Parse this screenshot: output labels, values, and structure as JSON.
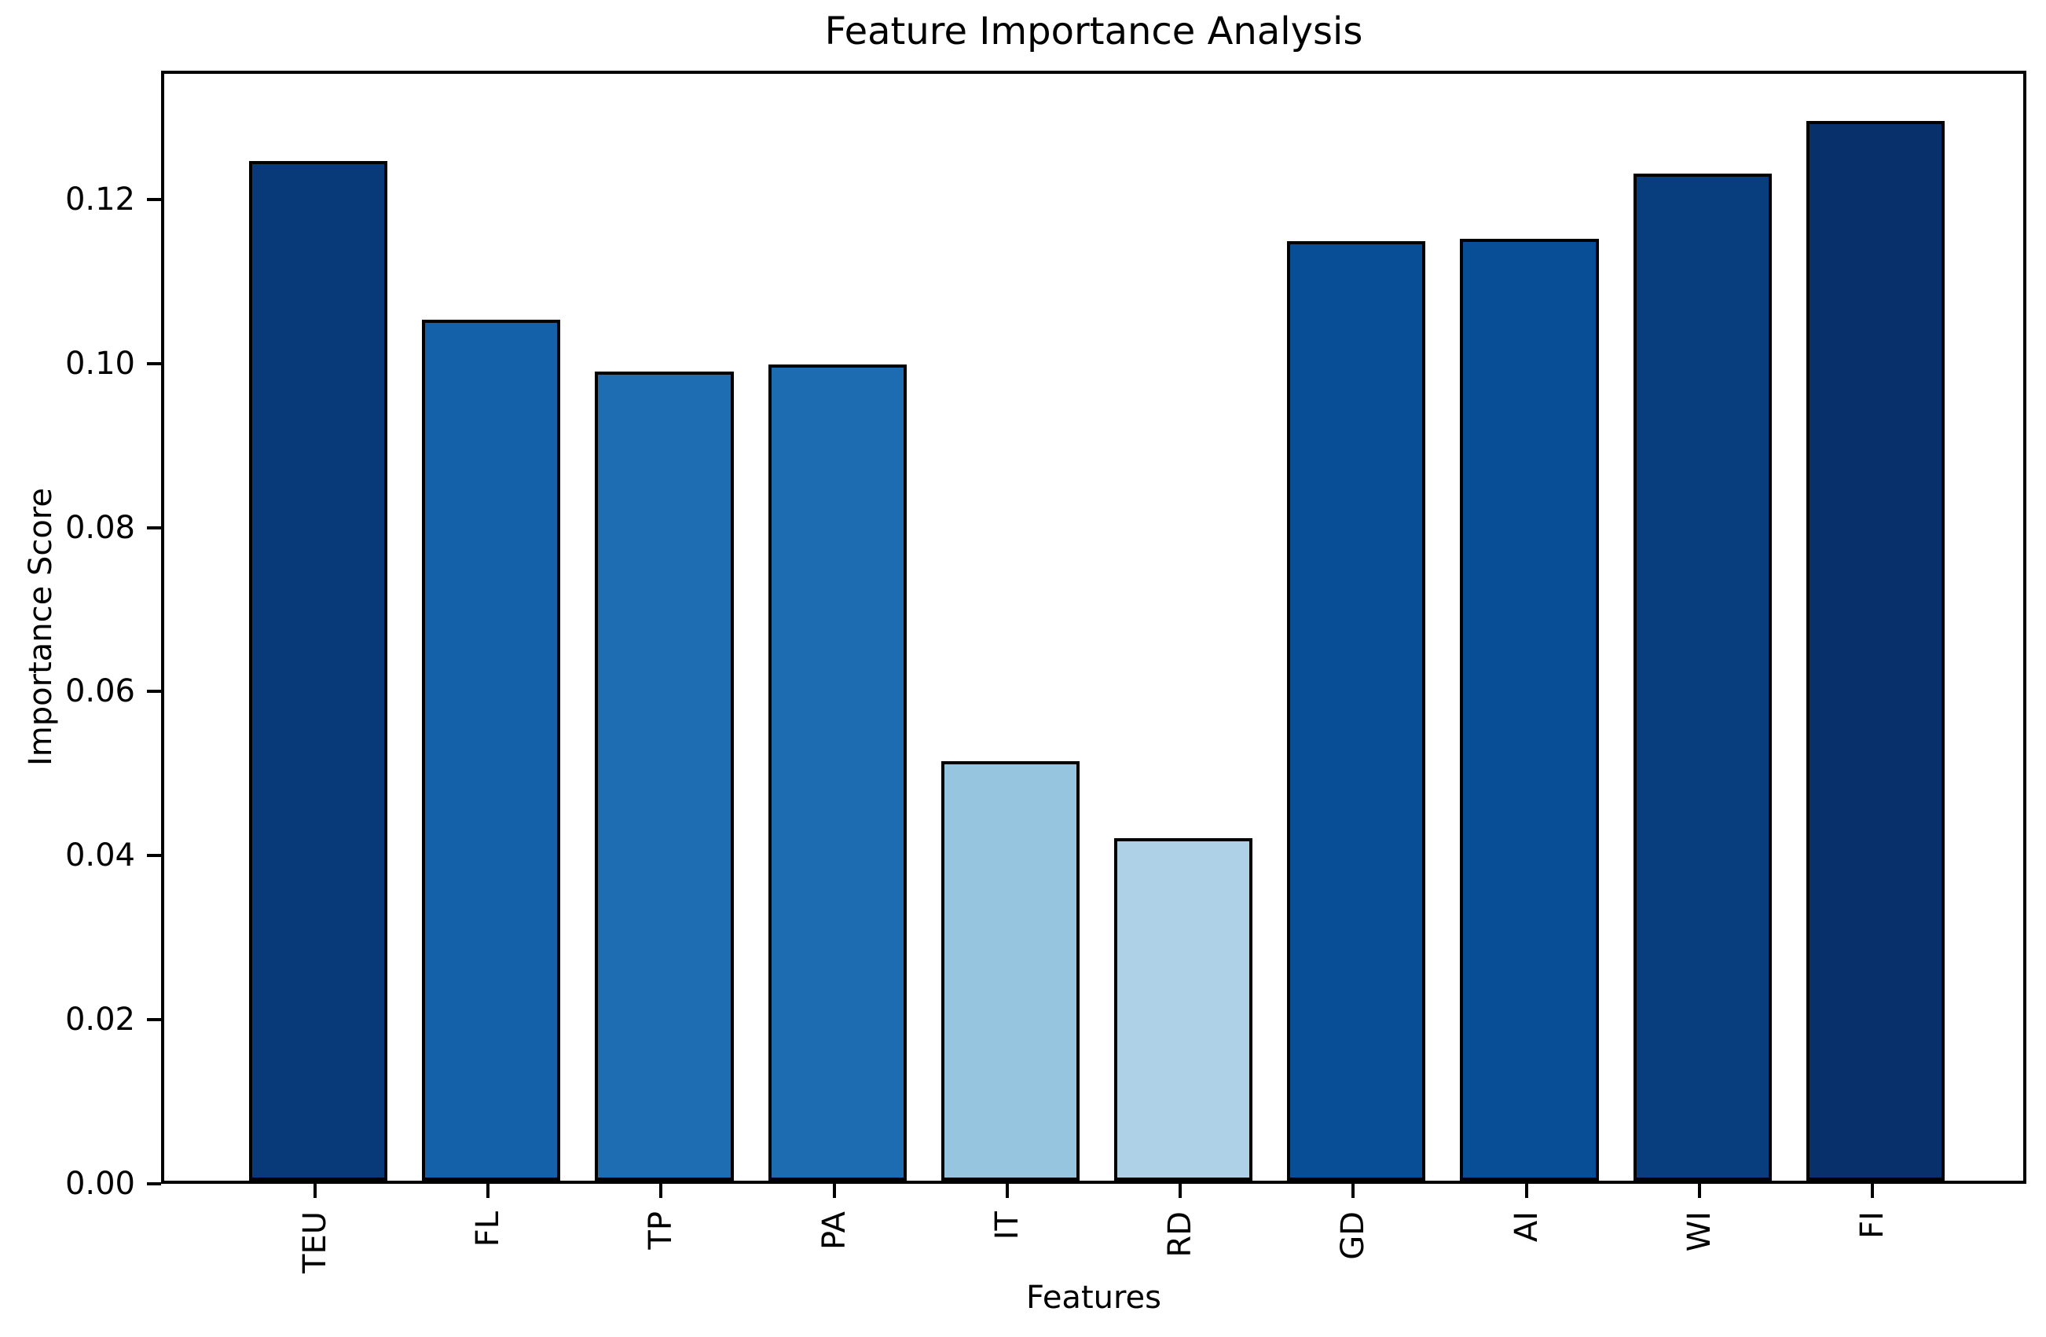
{
  "figure": {
    "background_color": "#ffffff"
  },
  "chart_data": {
    "type": "bar",
    "title": "Feature Importance Analysis",
    "xlabel": "Features",
    "ylabel": "Importance Score",
    "categories": [
      "TEU",
      "FL",
      "TP",
      "PA",
      "IT",
      "RD",
      "GD",
      "AI",
      "WI",
      "FI"
    ],
    "values": [
      0.1243,
      0.105,
      0.0986,
      0.0995,
      0.0511,
      0.0418,
      0.1145,
      0.1148,
      0.1228,
      0.1292
    ],
    "bar_colors": [
      "#083A7A",
      "#1461A9",
      "#1E6DB2",
      "#1D6CB1",
      "#96C6DF",
      "#AFD1E7",
      "#084E97",
      "#084E96",
      "#083D7E",
      "#08306B"
    ],
    "bar_edge_color": "#000000",
    "yticks": [
      0.0,
      0.02,
      0.04,
      0.06,
      0.08,
      0.1,
      0.12
    ],
    "ytick_decimals": 2,
    "ylim": [
      0,
      0.1357
    ],
    "xtick_rotation_deg": 90,
    "grid": false,
    "legend": null
  }
}
